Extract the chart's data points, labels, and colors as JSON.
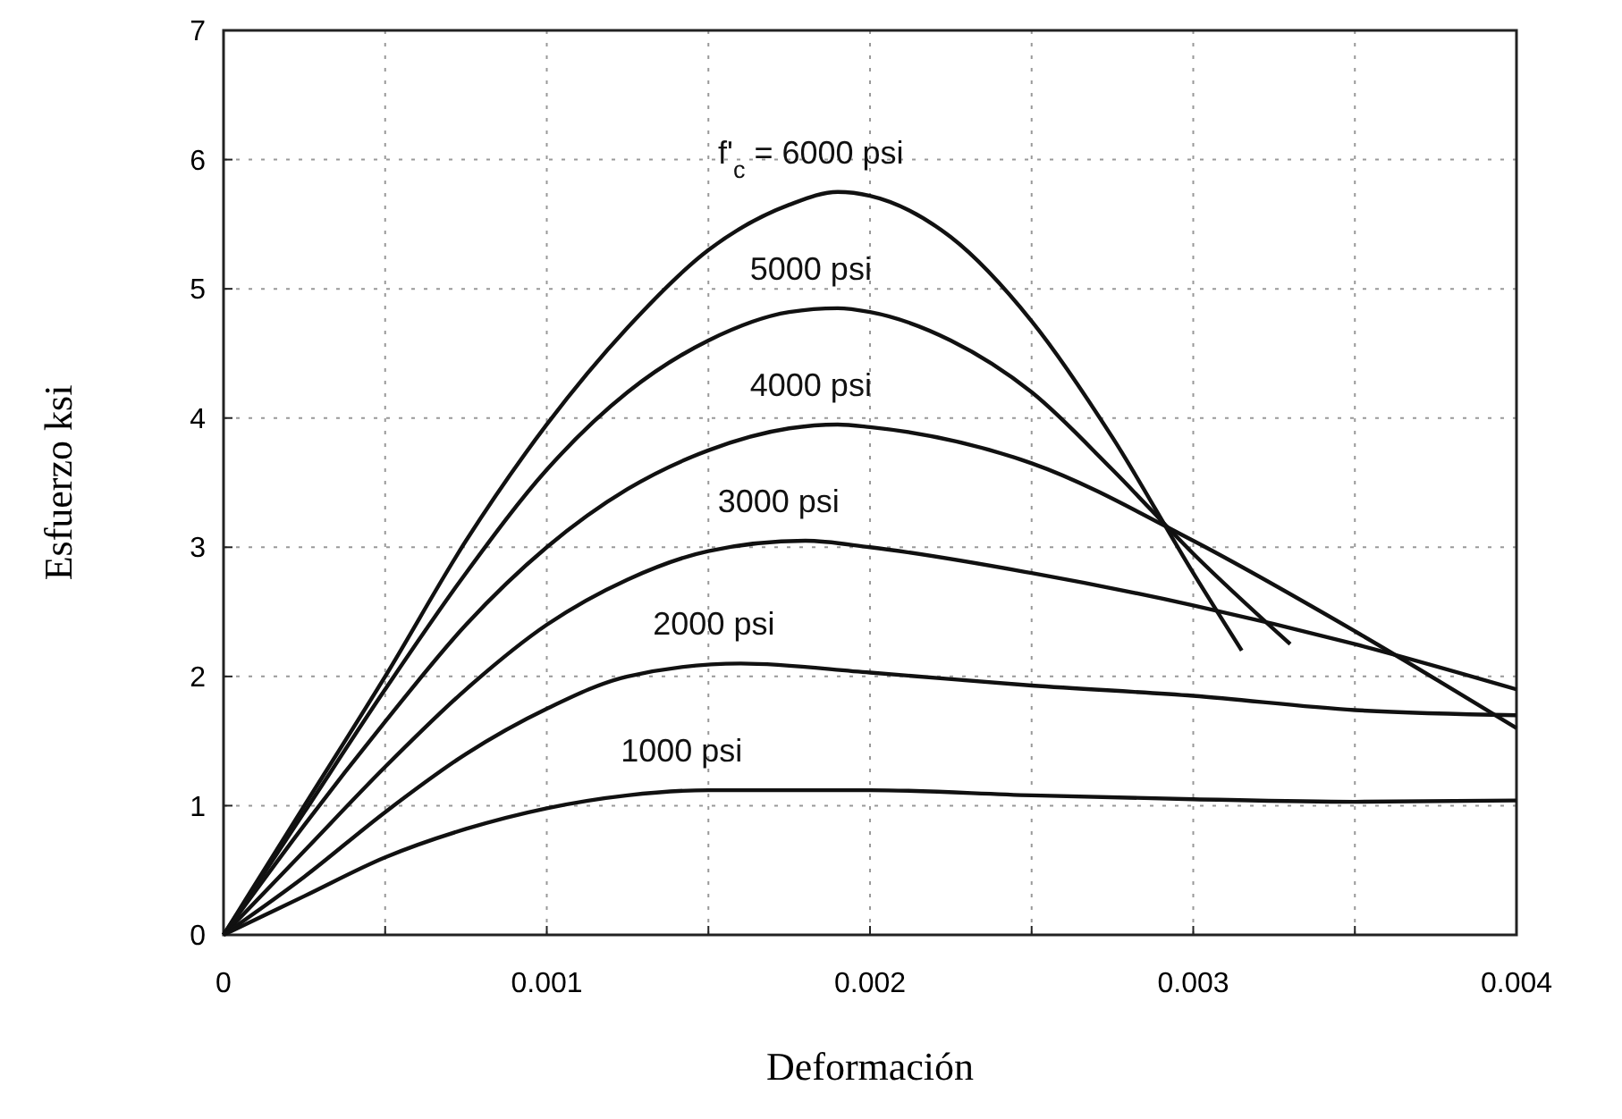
{
  "chart_data": {
    "type": "line",
    "xlabel": "Deformación",
    "ylabel": "Esfuerzo ksi",
    "xlim": [
      0,
      0.004
    ],
    "ylim": [
      0,
      7
    ],
    "xticks": [
      0,
      {
        "value": 0.0005,
        "label": null
      },
      0.001,
      {
        "value": 0.0015,
        "label": null
      },
      0.002,
      {
        "value": 0.0025,
        "label": null
      },
      0.003,
      {
        "value": 0.0035,
        "label": null
      },
      0.004
    ],
    "yticks": [
      0,
      1,
      2,
      3,
      4,
      5,
      6,
      7
    ],
    "grid": true,
    "marker": "none",
    "line_style": "solid",
    "series": [
      {
        "name": "f'$_{c}$ = 6000 psi",
        "color": "#111111",
        "x": [
          0,
          0.00025,
          0.0005,
          0.00075,
          0.001,
          0.00125,
          0.0015,
          0.00175,
          0.0019,
          0.002,
          0.00225,
          0.0025,
          0.00275,
          0.003,
          0.00315
        ],
        "values": [
          0,
          1.0,
          2.0,
          3.05,
          3.95,
          4.7,
          5.3,
          5.65,
          5.75,
          5.72,
          5.4,
          4.75,
          3.85,
          2.8,
          2.2
        ]
      },
      {
        "name": "5000 psi",
        "color": "#111111",
        "x": [
          0,
          0.00025,
          0.0005,
          0.00075,
          0.001,
          0.00125,
          0.0015,
          0.00175,
          0.0019,
          0.002,
          0.00225,
          0.0025,
          0.00275,
          0.003,
          0.0033
        ],
        "values": [
          0,
          0.95,
          1.9,
          2.8,
          3.6,
          4.2,
          4.6,
          4.82,
          4.85,
          4.82,
          4.6,
          4.2,
          3.6,
          2.95,
          2.25
        ]
      },
      {
        "name": "4000 psi",
        "color": "#111111",
        "x": [
          0,
          0.00025,
          0.0005,
          0.00075,
          0.001,
          0.00125,
          0.0015,
          0.00175,
          0.0019,
          0.002,
          0.0025,
          0.003,
          0.0035,
          0.004
        ],
        "values": [
          0,
          0.85,
          1.65,
          2.4,
          3.0,
          3.45,
          3.75,
          3.92,
          3.95,
          3.93,
          3.65,
          3.05,
          2.35,
          1.6
        ]
      },
      {
        "name": "3000 psi",
        "color": "#111111",
        "x": [
          0,
          0.00025,
          0.0005,
          0.00075,
          0.001,
          0.00125,
          0.0015,
          0.0018,
          0.002,
          0.0025,
          0.003,
          0.0035,
          0.004
        ],
        "values": [
          0,
          0.65,
          1.3,
          1.9,
          2.4,
          2.75,
          2.97,
          3.05,
          3.0,
          2.8,
          2.55,
          2.25,
          1.9
        ]
      },
      {
        "name": "2000 psi",
        "color": "#111111",
        "x": [
          0,
          0.00025,
          0.0005,
          0.00075,
          0.001,
          0.00125,
          0.0016,
          0.002,
          0.0025,
          0.003,
          0.0035,
          0.004
        ],
        "values": [
          0,
          0.45,
          0.95,
          1.4,
          1.75,
          2.0,
          2.1,
          2.03,
          1.93,
          1.85,
          1.74,
          1.7
        ]
      },
      {
        "name": "1000 psi",
        "color": "#111111",
        "x": [
          0,
          0.00025,
          0.0005,
          0.00075,
          0.001,
          0.00125,
          0.0015,
          0.002,
          0.0025,
          0.003,
          0.0035,
          0.004
        ],
        "values": [
          0,
          0.3,
          0.6,
          0.82,
          0.98,
          1.08,
          1.12,
          1.12,
          1.08,
          1.05,
          1.03,
          1.04
        ]
      }
    ]
  }
}
